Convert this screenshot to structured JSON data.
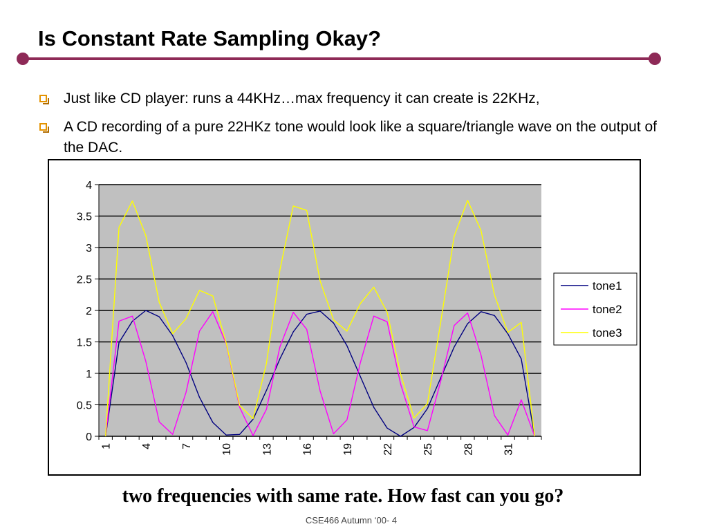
{
  "slide": {
    "title": "Is Constant Rate Sampling Okay?",
    "accent_color": "#8e2a57",
    "bullet_color": "#e49300",
    "bullets": [
      "Just like CD player: runs a 44KHz…max frequency it can create is 22KHz,",
      "A CD recording of a pure 22HKz tone would look like a square/triangle wave on the output of the DAC."
    ],
    "caption": "two frequencies with same rate. How fast can you go?",
    "footer": "CSE466 Autumn ‘00- 4"
  },
  "chart_data": {
    "type": "line",
    "x": [
      1,
      2,
      3,
      4,
      5,
      6,
      7,
      8,
      9,
      10,
      11,
      12,
      13,
      14,
      15,
      16,
      17,
      18,
      19,
      20,
      21,
      22,
      23,
      24,
      25,
      26,
      27,
      28,
      29,
      30,
      31,
      32,
      33
    ],
    "x_tick_labels": [
      "1",
      "4",
      "7",
      "10",
      "13",
      "16",
      "19",
      "22",
      "25",
      "28",
      "31"
    ],
    "y_tick_labels": [
      "0",
      "0.5",
      "1",
      "1.5",
      "2",
      "2.5",
      "3",
      "3.5",
      "4"
    ],
    "ylim": [
      0,
      4
    ],
    "grid": true,
    "plot_background": "#c0c0c0",
    "legend_position": "right",
    "series": [
      {
        "name": "tone1",
        "color": "#000080",
        "values": [
          0,
          1.49,
          1.83,
          2,
          1.9,
          1.6,
          1.17,
          0.62,
          0.22,
          0.02,
          0.03,
          0.27,
          0.73,
          1.23,
          1.66,
          1.94,
          1.99,
          1.8,
          1.44,
          0.95,
          0.46,
          0.13,
          0,
          0.14,
          0.44,
          0.93,
          1.42,
          1.79,
          1.98,
          1.92,
          1.63,
          1.23,
          0
        ]
      },
      {
        "name": "tone2",
        "color": "#ff00ff",
        "values": [
          0,
          1.83,
          1.91,
          1.19,
          0.23,
          0.03,
          0.7,
          1.67,
          1.98,
          1.47,
          0.46,
          0.01,
          0.43,
          1.42,
          1.97,
          1.7,
          0.72,
          0.04,
          0.26,
          1.17,
          1.91,
          1.82,
          0.83,
          0.15,
          0.09,
          0.88,
          1.76,
          1.96,
          1.29,
          0.33,
          0.02,
          0.58,
          0
        ]
      },
      {
        "name": "tone3",
        "color": "#ffff00",
        "values": [
          0,
          3.32,
          3.74,
          3.19,
          2.13,
          1.63,
          1.87,
          2.32,
          2.23,
          1.48,
          0.49,
          0.28,
          1.16,
          2.64,
          3.66,
          3.59,
          2.47,
          1.85,
          1.67,
          2.11,
          2.37,
          1.97,
          0.99,
          0.29,
          0.52,
          1.82,
          3.18,
          3.75,
          3.27,
          2.25,
          1.65,
          1.81,
          0
        ]
      }
    ]
  }
}
